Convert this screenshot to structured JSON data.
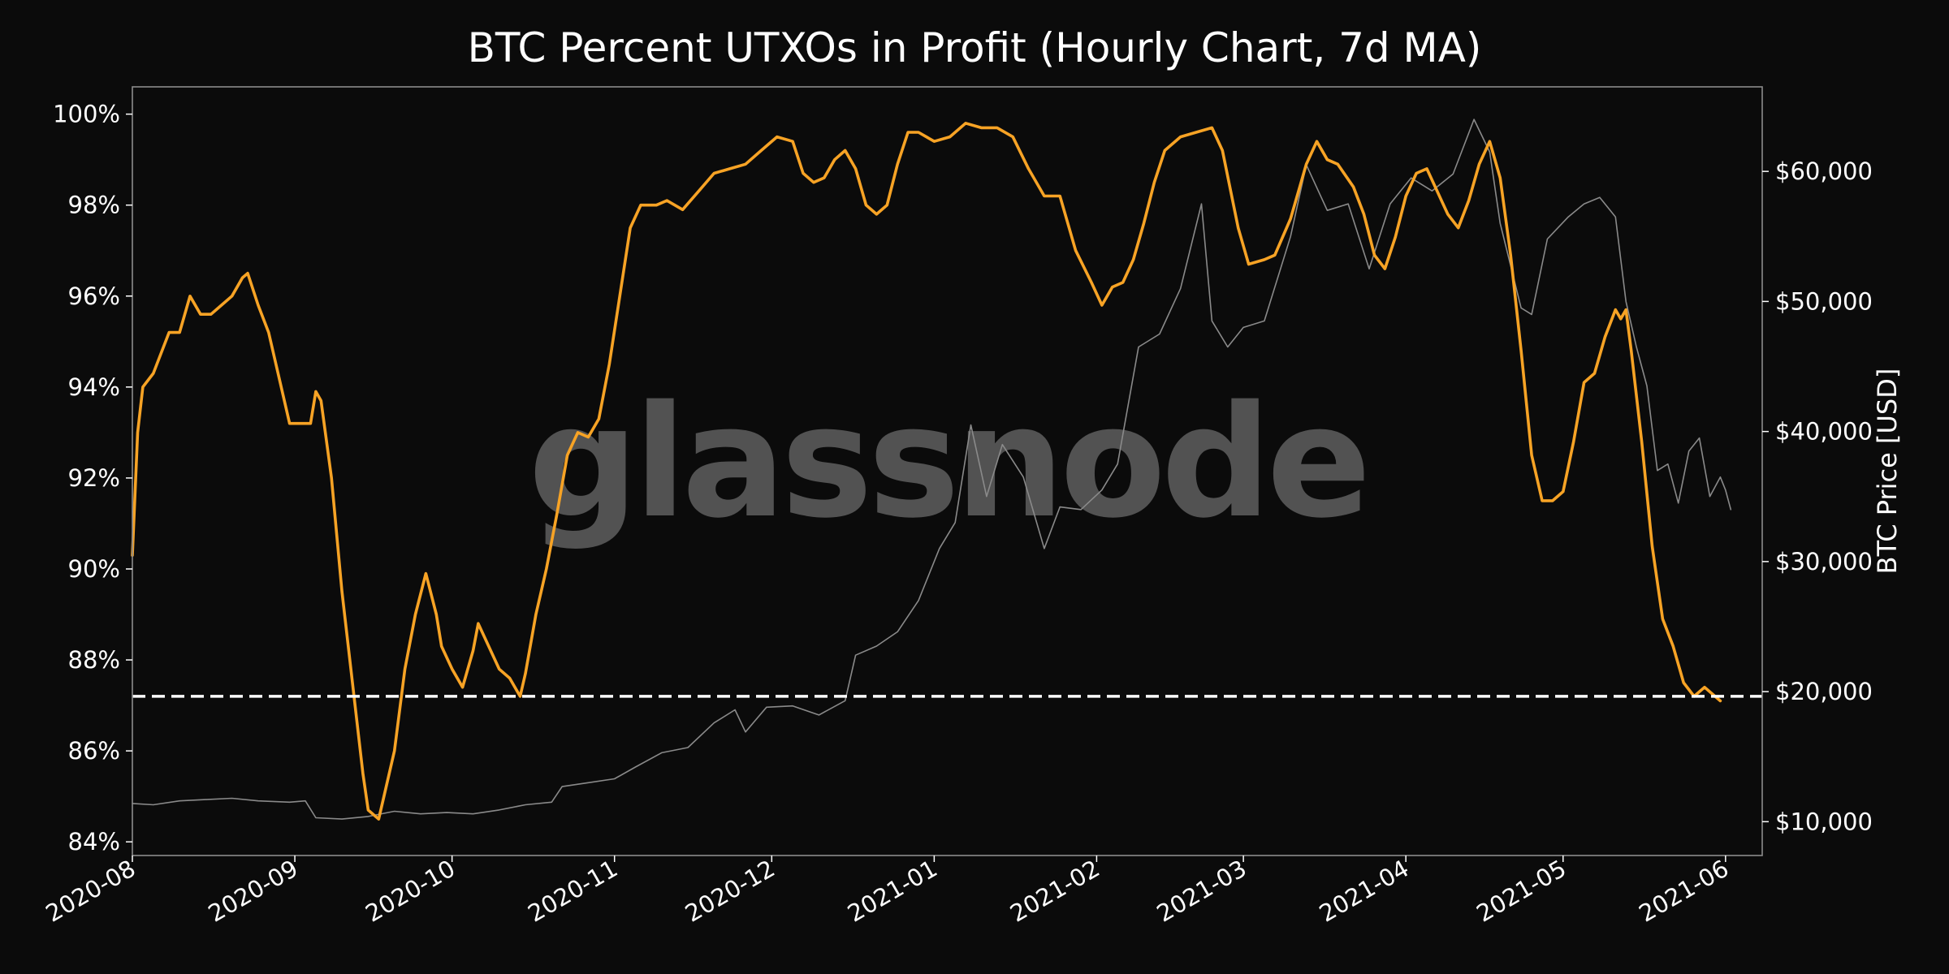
{
  "chart_data": {
    "type": "line",
    "title": "BTC Percent UTXOs in Profit (Hourly Chart, 7d MA)",
    "watermark": "glassnode",
    "y_left": {
      "ylim": [
        83.7,
        100.6
      ],
      "ticks": [
        84,
        86,
        88,
        90,
        92,
        94,
        96,
        98,
        100
      ],
      "tick_labels": [
        "84%",
        "86%",
        "88%",
        "90%",
        "92%",
        "94%",
        "96%",
        "98%",
        "100%"
      ]
    },
    "y_right": {
      "label": "BTC Price [USD]",
      "ylim": [
        7400,
        66500
      ],
      "ticks": [
        10000,
        20000,
        30000,
        40000,
        50000,
        60000
      ],
      "tick_labels": [
        "$10,000",
        "$20,000",
        "$30,000",
        "$40,000",
        "$50,000",
        "$60,000"
      ]
    },
    "x": {
      "range": [
        "2020-08-01",
        "2021-06-08"
      ],
      "ticks": [
        "2020-08-01",
        "2020-09-01",
        "2020-10-01",
        "2020-11-01",
        "2020-12-01",
        "2021-01-01",
        "2021-02-01",
        "2021-03-01",
        "2021-04-01",
        "2021-05-01",
        "2021-06-01"
      ],
      "tick_labels": [
        "2020-08",
        "2020-09",
        "2020-10",
        "2020-11",
        "2020-12",
        "2021-01",
        "2021-02",
        "2021-03",
        "2021-04",
        "2021-05",
        "2021-06"
      ]
    },
    "threshold": {
      "value": 87.2,
      "style": "dashed",
      "color": "#ffffff"
    },
    "colors": {
      "profit": "#f7a325",
      "price": "#8a8a8a",
      "background": "#0b0b0b"
    },
    "grid": false,
    "series": [
      {
        "key": "percent_utxos_in_profit",
        "axis": "left",
        "color": "#f7a325",
        "points": [
          [
            "2020-08-01",
            90.3
          ],
          [
            "2020-08-02",
            93.0
          ],
          [
            "2020-08-03",
            94.0
          ],
          [
            "2020-08-05",
            94.3
          ],
          [
            "2020-08-08",
            95.2
          ],
          [
            "2020-08-10",
            95.2
          ],
          [
            "2020-08-12",
            96.0
          ],
          [
            "2020-08-14",
            95.6
          ],
          [
            "2020-08-16",
            95.6
          ],
          [
            "2020-08-18",
            95.8
          ],
          [
            "2020-08-20",
            96.0
          ],
          [
            "2020-08-22",
            96.4
          ],
          [
            "2020-08-23",
            96.5
          ],
          [
            "2020-08-25",
            95.8
          ],
          [
            "2020-08-27",
            95.2
          ],
          [
            "2020-08-29",
            94.2
          ],
          [
            "2020-08-31",
            93.2
          ],
          [
            "2020-09-02",
            93.2
          ],
          [
            "2020-09-04",
            93.2
          ],
          [
            "2020-09-05",
            93.9
          ],
          [
            "2020-09-06",
            93.7
          ],
          [
            "2020-09-08",
            92.0
          ],
          [
            "2020-09-10",
            89.5
          ],
          [
            "2020-09-12",
            87.5
          ],
          [
            "2020-09-14",
            85.5
          ],
          [
            "2020-09-15",
            84.7
          ],
          [
            "2020-09-17",
            84.5
          ],
          [
            "2020-09-18",
            85.0
          ],
          [
            "2020-09-20",
            86.0
          ],
          [
            "2020-09-22",
            87.8
          ],
          [
            "2020-09-24",
            89.0
          ],
          [
            "2020-09-26",
            89.9
          ],
          [
            "2020-09-28",
            89.0
          ],
          [
            "2020-09-29",
            88.3
          ],
          [
            "2020-10-01",
            87.8
          ],
          [
            "2020-10-03",
            87.4
          ],
          [
            "2020-10-05",
            88.2
          ],
          [
            "2020-10-06",
            88.8
          ],
          [
            "2020-10-08",
            88.3
          ],
          [
            "2020-10-10",
            87.8
          ],
          [
            "2020-10-12",
            87.6
          ],
          [
            "2020-10-14",
            87.2
          ],
          [
            "2020-10-15",
            87.7
          ],
          [
            "2020-10-17",
            89.0
          ],
          [
            "2020-10-19",
            90.0
          ],
          [
            "2020-10-21",
            91.2
          ],
          [
            "2020-10-23",
            92.5
          ],
          [
            "2020-10-25",
            93.0
          ],
          [
            "2020-10-27",
            92.9
          ],
          [
            "2020-10-29",
            93.3
          ],
          [
            "2020-10-31",
            94.5
          ],
          [
            "2020-11-02",
            96.0
          ],
          [
            "2020-11-04",
            97.5
          ],
          [
            "2020-11-06",
            98.0
          ],
          [
            "2020-11-09",
            98.0
          ],
          [
            "2020-11-11",
            98.1
          ],
          [
            "2020-11-14",
            97.9
          ],
          [
            "2020-11-17",
            98.3
          ],
          [
            "2020-11-20",
            98.7
          ],
          [
            "2020-11-23",
            98.8
          ],
          [
            "2020-11-26",
            98.9
          ],
          [
            "2020-11-29",
            99.2
          ],
          [
            "2020-12-02",
            99.5
          ],
          [
            "2020-12-05",
            99.4
          ],
          [
            "2020-12-07",
            98.7
          ],
          [
            "2020-12-09",
            98.5
          ],
          [
            "2020-12-11",
            98.6
          ],
          [
            "2020-12-13",
            99.0
          ],
          [
            "2020-12-15",
            99.2
          ],
          [
            "2020-12-17",
            98.8
          ],
          [
            "2020-12-19",
            98.0
          ],
          [
            "2020-12-21",
            97.8
          ],
          [
            "2020-12-23",
            98.0
          ],
          [
            "2020-12-25",
            98.9
          ],
          [
            "2020-12-27",
            99.6
          ],
          [
            "2020-12-29",
            99.6
          ],
          [
            "2021-01-01",
            99.4
          ],
          [
            "2021-01-04",
            99.5
          ],
          [
            "2021-01-07",
            99.8
          ],
          [
            "2021-01-10",
            99.7
          ],
          [
            "2021-01-13",
            99.7
          ],
          [
            "2021-01-16",
            99.5
          ],
          [
            "2021-01-19",
            98.8
          ],
          [
            "2021-01-22",
            98.2
          ],
          [
            "2021-01-25",
            98.2
          ],
          [
            "2021-01-28",
            97.0
          ],
          [
            "2021-01-31",
            96.3
          ],
          [
            "2021-02-02",
            95.8
          ],
          [
            "2021-02-04",
            96.2
          ],
          [
            "2021-02-06",
            96.3
          ],
          [
            "2021-02-08",
            96.8
          ],
          [
            "2021-02-10",
            97.6
          ],
          [
            "2021-02-12",
            98.5
          ],
          [
            "2021-02-14",
            99.2
          ],
          [
            "2021-02-17",
            99.5
          ],
          [
            "2021-02-20",
            99.6
          ],
          [
            "2021-02-23",
            99.7
          ],
          [
            "2021-02-25",
            99.2
          ],
          [
            "2021-02-28",
            97.5
          ],
          [
            "2021-03-02",
            96.7
          ],
          [
            "2021-03-05",
            96.8
          ],
          [
            "2021-03-07",
            96.9
          ],
          [
            "2021-03-10",
            97.7
          ],
          [
            "2021-03-13",
            98.9
          ],
          [
            "2021-03-15",
            99.4
          ],
          [
            "2021-03-17",
            99.0
          ],
          [
            "2021-03-19",
            98.9
          ],
          [
            "2021-03-22",
            98.4
          ],
          [
            "2021-03-24",
            97.8
          ],
          [
            "2021-03-26",
            96.9
          ],
          [
            "2021-03-28",
            96.6
          ],
          [
            "2021-03-30",
            97.3
          ],
          [
            "2021-04-01",
            98.2
          ],
          [
            "2021-04-03",
            98.7
          ],
          [
            "2021-04-05",
            98.8
          ],
          [
            "2021-04-07",
            98.3
          ],
          [
            "2021-04-09",
            97.8
          ],
          [
            "2021-04-11",
            97.5
          ],
          [
            "2021-04-13",
            98.1
          ],
          [
            "2021-04-15",
            98.9
          ],
          [
            "2021-04-17",
            99.4
          ],
          [
            "2021-04-19",
            98.6
          ],
          [
            "2021-04-21",
            96.9
          ],
          [
            "2021-04-23",
            94.8
          ],
          [
            "2021-04-25",
            92.5
          ],
          [
            "2021-04-27",
            91.5
          ],
          [
            "2021-04-29",
            91.5
          ],
          [
            "2021-05-01",
            91.7
          ],
          [
            "2021-05-03",
            92.8
          ],
          [
            "2021-05-05",
            94.1
          ],
          [
            "2021-05-07",
            94.3
          ],
          [
            "2021-05-09",
            95.1
          ],
          [
            "2021-05-11",
            95.7
          ],
          [
            "2021-05-12",
            95.5
          ],
          [
            "2021-05-13",
            95.7
          ],
          [
            "2021-05-14",
            94.8
          ],
          [
            "2021-05-16",
            92.8
          ],
          [
            "2021-05-18",
            90.5
          ],
          [
            "2021-05-20",
            88.9
          ],
          [
            "2021-05-22",
            88.3
          ],
          [
            "2021-05-24",
            87.5
          ],
          [
            "2021-05-26",
            87.2
          ],
          [
            "2021-05-28",
            87.4
          ],
          [
            "2021-05-30",
            87.2
          ],
          [
            "2021-05-31",
            87.1
          ]
        ]
      },
      {
        "key": "btc_price",
        "axis": "right",
        "color": "#8a8a8a",
        "points": [
          [
            "2020-08-01",
            11400
          ],
          [
            "2020-08-05",
            11300
          ],
          [
            "2020-08-10",
            11600
          ],
          [
            "2020-08-15",
            11700
          ],
          [
            "2020-08-20",
            11800
          ],
          [
            "2020-08-25",
            11600
          ],
          [
            "2020-08-31",
            11500
          ],
          [
            "2020-09-03",
            11600
          ],
          [
            "2020-09-05",
            10300
          ],
          [
            "2020-09-10",
            10200
          ],
          [
            "2020-09-15",
            10400
          ],
          [
            "2020-09-20",
            10800
          ],
          [
            "2020-09-25",
            10600
          ],
          [
            "2020-09-30",
            10700
          ],
          [
            "2020-10-05",
            10600
          ],
          [
            "2020-10-10",
            10900
          ],
          [
            "2020-10-15",
            11300
          ],
          [
            "2020-10-20",
            11500
          ],
          [
            "2020-10-22",
            12700
          ],
          [
            "2020-10-27",
            13000
          ],
          [
            "2020-11-01",
            13300
          ],
          [
            "2020-11-05",
            14200
          ],
          [
            "2020-11-10",
            15300
          ],
          [
            "2020-11-15",
            15700
          ],
          [
            "2020-11-20",
            17600
          ],
          [
            "2020-11-24",
            18600
          ],
          [
            "2020-11-26",
            16900
          ],
          [
            "2020-11-30",
            18800
          ],
          [
            "2020-12-05",
            18900
          ],
          [
            "2020-12-10",
            18200
          ],
          [
            "2020-12-15",
            19300
          ],
          [
            "2020-12-17",
            22800
          ],
          [
            "2020-12-21",
            23500
          ],
          [
            "2020-12-25",
            24600
          ],
          [
            "2020-12-29",
            27000
          ],
          [
            "2021-01-02",
            31000
          ],
          [
            "2021-01-05",
            33000
          ],
          [
            "2021-01-08",
            40500
          ],
          [
            "2021-01-11",
            35000
          ],
          [
            "2021-01-14",
            39000
          ],
          [
            "2021-01-18",
            36500
          ],
          [
            "2021-01-22",
            31000
          ],
          [
            "2021-01-25",
            34200
          ],
          [
            "2021-01-29",
            34000
          ],
          [
            "2021-02-02",
            35500
          ],
          [
            "2021-02-05",
            37500
          ],
          [
            "2021-02-09",
            46500
          ],
          [
            "2021-02-13",
            47500
          ],
          [
            "2021-02-17",
            51000
          ],
          [
            "2021-02-21",
            57500
          ],
          [
            "2021-02-23",
            48500
          ],
          [
            "2021-02-26",
            46500
          ],
          [
            "2021-03-01",
            48000
          ],
          [
            "2021-03-05",
            48500
          ],
          [
            "2021-03-10",
            55000
          ],
          [
            "2021-03-13",
            60500
          ],
          [
            "2021-03-17",
            57000
          ],
          [
            "2021-03-21",
            57500
          ],
          [
            "2021-03-25",
            52500
          ],
          [
            "2021-03-29",
            57500
          ],
          [
            "2021-04-02",
            59500
          ],
          [
            "2021-04-06",
            58500
          ],
          [
            "2021-04-10",
            59800
          ],
          [
            "2021-04-14",
            64000
          ],
          [
            "2021-04-17",
            61500
          ],
          [
            "2021-04-19",
            56000
          ],
          [
            "2021-04-23",
            49500
          ],
          [
            "2021-04-25",
            49000
          ],
          [
            "2021-04-28",
            54800
          ],
          [
            "2021-05-02",
            56500
          ],
          [
            "2021-05-05",
            57500
          ],
          [
            "2021-05-08",
            58000
          ],
          [
            "2021-05-11",
            56500
          ],
          [
            "2021-05-13",
            50000
          ],
          [
            "2021-05-15",
            46500
          ],
          [
            "2021-05-17",
            43500
          ],
          [
            "2021-05-19",
            37000
          ],
          [
            "2021-05-21",
            37500
          ],
          [
            "2021-05-23",
            34500
          ],
          [
            "2021-05-25",
            38500
          ],
          [
            "2021-05-27",
            39500
          ],
          [
            "2021-05-29",
            35000
          ],
          [
            "2021-05-31",
            36500
          ],
          [
            "2021-06-01",
            35500
          ],
          [
            "2021-06-02",
            34000
          ]
        ]
      }
    ]
  }
}
